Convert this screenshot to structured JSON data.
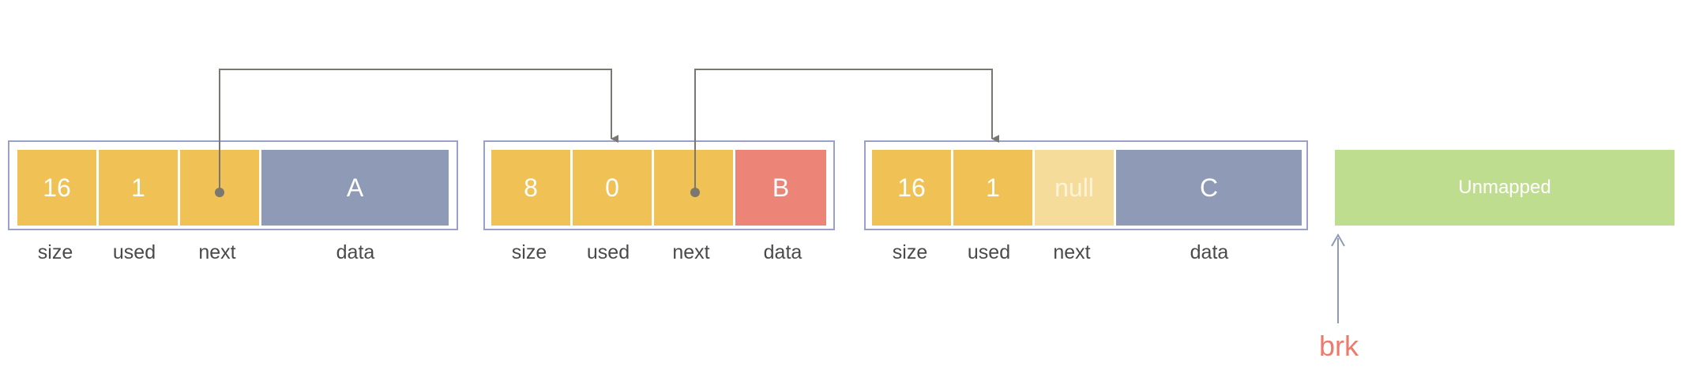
{
  "blocks": [
    {
      "size_value": "16",
      "used_value": "1",
      "next_value": "",
      "data_value": "A",
      "labels": {
        "size": "size",
        "used": "used",
        "next": "next",
        "data": "data"
      }
    },
    {
      "size_value": "8",
      "used_value": "0",
      "next_value": "",
      "data_value": "B",
      "labels": {
        "size": "size",
        "used": "used",
        "next": "next",
        "data": "data"
      }
    },
    {
      "size_value": "16",
      "used_value": "1",
      "next_value": "null",
      "data_value": "C",
      "labels": {
        "size": "size",
        "used": "used",
        "next": "next",
        "data": "data"
      }
    }
  ],
  "unmapped_label": "Unmapped",
  "brk_label": "brk",
  "colors": {
    "header": "#f0c154",
    "null_field": "#f6dc9a",
    "data_used": "#8e9ab6",
    "data_free": "#ec8477",
    "unmapped": "#bfdd8e",
    "frame": "#9aa0c9",
    "pointer": "#7a7670",
    "brk": "#ec7b6e"
  }
}
